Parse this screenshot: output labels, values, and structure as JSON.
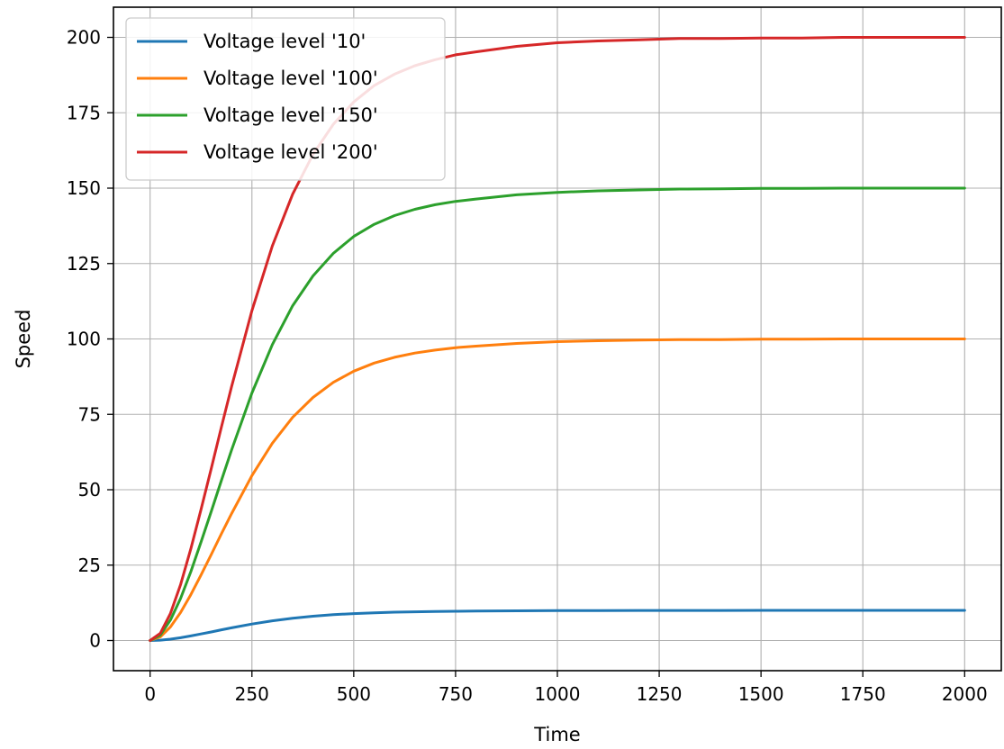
{
  "chart_data": {
    "type": "line",
    "title": "",
    "xlabel": "Time",
    "ylabel": "Speed",
    "xlim": [
      -90,
      2090
    ],
    "ylim": [
      -10,
      210
    ],
    "xticks": [
      0,
      250,
      500,
      750,
      1000,
      1250,
      1500,
      1750,
      2000
    ],
    "yticks": [
      0,
      25,
      50,
      75,
      100,
      125,
      150,
      175,
      200
    ],
    "xtick_labels": [
      "0",
      "250",
      "500",
      "750",
      "1000",
      "1250",
      "1500",
      "1750",
      "2000"
    ],
    "ytick_labels": [
      "0",
      "25",
      "50",
      "75",
      "100",
      "125",
      "150",
      "175",
      "200"
    ],
    "grid": true,
    "legend_position": "top-left",
    "x": [
      0,
      25,
      50,
      75,
      100,
      125,
      150,
      175,
      200,
      250,
      300,
      350,
      400,
      450,
      500,
      550,
      600,
      650,
      700,
      750,
      800,
      900,
      1000,
      1100,
      1200,
      1300,
      1400,
      1500,
      1600,
      1700,
      1800,
      1900,
      2000
    ],
    "series": [
      {
        "name": "Voltage level '10'",
        "color": "#1f77b4",
        "values": [
          0,
          0.12,
          0.45,
          0.93,
          1.52,
          2.17,
          2.85,
          3.54,
          4.21,
          5.47,
          6.54,
          7.4,
          8.06,
          8.56,
          8.93,
          9.2,
          9.39,
          9.53,
          9.63,
          9.71,
          9.76,
          9.85,
          9.91,
          9.94,
          9.96,
          9.98,
          9.98,
          9.99,
          9.99,
          10.0,
          10.0,
          10.0,
          10.0
        ]
      },
      {
        "name": "Voltage level '100'",
        "color": "#ff7f0e",
        "values": [
          0,
          1.2,
          4.5,
          9.3,
          15.2,
          21.7,
          28.5,
          35.4,
          42.1,
          54.7,
          65.4,
          74.0,
          80.6,
          85.6,
          89.3,
          92.0,
          93.9,
          95.3,
          96.3,
          97.1,
          97.6,
          98.5,
          99.1,
          99.4,
          99.6,
          99.8,
          99.8,
          99.9,
          99.9,
          100.0,
          100.0,
          100.0,
          100.0
        ]
      },
      {
        "name": "Voltage level '150'",
        "color": "#2ca02c",
        "values": [
          0,
          1.8,
          6.8,
          14.0,
          22.8,
          32.6,
          42.8,
          53.1,
          63.2,
          82.1,
          98.1,
          111.0,
          120.9,
          128.4,
          134.0,
          138.0,
          140.9,
          143.0,
          144.5,
          145.6,
          146.4,
          147.8,
          148.6,
          149.1,
          149.4,
          149.7,
          149.8,
          149.9,
          149.9,
          150.0,
          150.0,
          150.0,
          150.0
        ]
      },
      {
        "name": "Voltage level '200'",
        "color": "#d62728",
        "values": [
          0,
          2.4,
          9.0,
          18.6,
          30.4,
          43.4,
          57.0,
          70.8,
          84.2,
          109.4,
          130.8,
          148.0,
          161.2,
          171.2,
          178.6,
          184.0,
          187.8,
          190.6,
          192.6,
          194.2,
          195.2,
          197.0,
          198.2,
          198.8,
          199.2,
          199.6,
          199.6,
          199.8,
          199.8,
          200.0,
          200.0,
          200.0,
          200.0
        ]
      }
    ]
  }
}
